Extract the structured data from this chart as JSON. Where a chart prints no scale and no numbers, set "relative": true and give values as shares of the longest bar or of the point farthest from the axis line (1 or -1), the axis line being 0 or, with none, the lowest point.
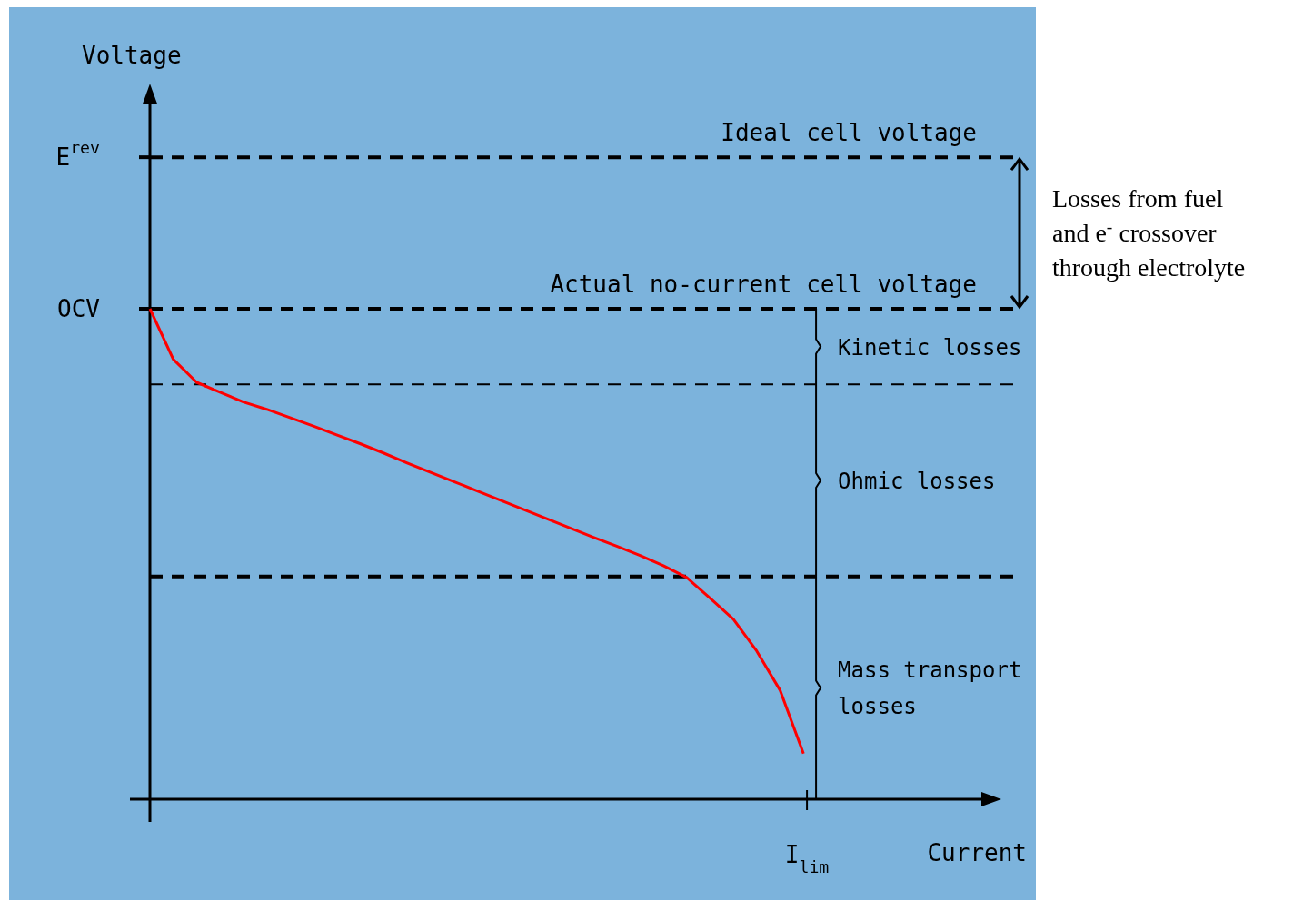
{
  "chart_data": {
    "type": "line",
    "relative": true,
    "categories": [
      null,
      null,
      null,
      null,
      null,
      null,
      null,
      null,
      null,
      null,
      null,
      null,
      null,
      null,
      null,
      null,
      null,
      null,
      null,
      null,
      null,
      null,
      null,
      null,
      null,
      null,
      null,
      null,
      null
    ],
    "series": [
      {
        "color": "#ff0000",
        "values": [
          1,
          0.897,
          0.85,
          0.83,
          0.81,
          0.795,
          0.778,
          0.761,
          0.743,
          0.725,
          0.706,
          0.686,
          0.667,
          0.648,
          0.629,
          0.61,
          0.591,
          0.572,
          0.553,
          0.534,
          0.516,
          0.497,
          0.476,
          0.452,
          0.41,
          0.367,
          0.302,
          0.222,
          0.093
        ]
      }
    ],
    "ref_lines": [
      {
        "axis": "y",
        "value": 1.309,
        "label": "Ideal cell voltage",
        "line_style": "dashed"
      },
      {
        "axis": "y",
        "value": 1,
        "label": "Actual no-current cell voltage",
        "line_style": "dashed"
      },
      {
        "axis": "y",
        "value": 0.846,
        "line_style": "dashed"
      },
      {
        "axis": "y",
        "value": 0.454,
        "line_style": "dashed"
      }
    ],
    "annotations": [
      "Voltage",
      "E$^{rev}$",
      "OCV",
      "I$_{lim}$",
      "Current",
      "Losses from fuel and e$^{-}$ crossover through electrolyte",
      "Kinetic losses",
      "Ohmic losses",
      "Mass transport losses"
    ],
    "marker": "none",
    "line_style": "solid"
  }
}
